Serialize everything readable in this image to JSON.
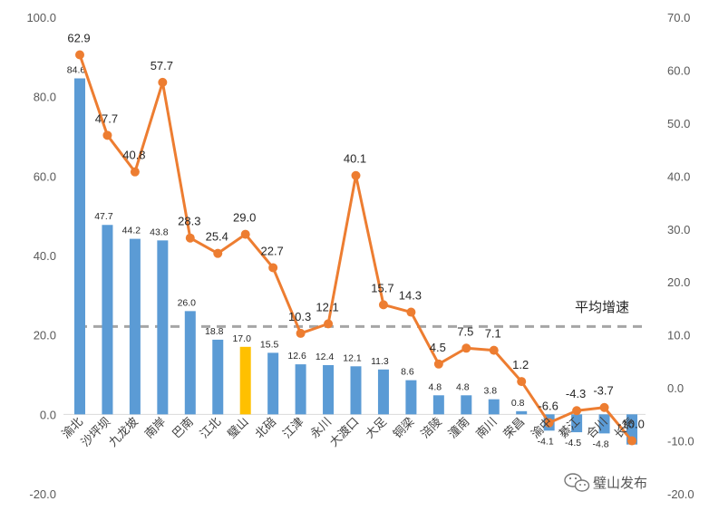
{
  "chart_data": {
    "type": "bar",
    "categories": [
      "渝北",
      "沙坪坝",
      "九龙坡",
      "南岸",
      "巴南",
      "江北",
      "璧山",
      "北碚",
      "江津",
      "永川",
      "大渡口",
      "大足",
      "铜梁",
      "涪陵",
      "潼南",
      "南川",
      "荣昌",
      "渝中",
      "綦江",
      "合川",
      "长寿"
    ],
    "bar_values": [
      84.6,
      47.7,
      44.2,
      43.8,
      26.0,
      18.8,
      17.0,
      15.5,
      12.6,
      12.4,
      12.1,
      11.3,
      8.6,
      4.8,
      4.8,
      3.8,
      0.8,
      -4.1,
      -4.5,
      -4.8,
      -7.6
    ],
    "bar_labels": [
      "84.6",
      "47.7",
      "44.2",
      "43.8",
      "26.0",
      "18.8",
      "17.0",
      "15.5",
      "12.6",
      "12.4",
      "12.1",
      "11.3",
      "8.6",
      "4.8",
      "4.8",
      "3.8",
      "0.8",
      "-4.1",
      "-4.5",
      "-4.8",
      ""
    ],
    "line_values": [
      62.9,
      47.7,
      40.8,
      57.7,
      28.3,
      25.4,
      29.0,
      22.7,
      10.3,
      12.1,
      40.1,
      15.7,
      14.3,
      4.5,
      7.5,
      7.1,
      1.2,
      -6.6,
      -4.3,
      -3.7,
      -10.0
    ],
    "line_labels": [
      "62.9",
      "47.7",
      "40.8",
      "57.7",
      "28.3",
      "25.4",
      "29.0",
      "22.7",
      "10.3",
      "12.1",
      "40.1",
      "15.7",
      "14.3",
      "4.5",
      "7.5",
      "7.1",
      "1.2",
      "-6.6",
      "-4.3",
      "-3.7",
      "-10.0"
    ],
    "highlight_index": 6,
    "average_label": "平均增速",
    "average_value": 11.6,
    "y_left": {
      "min": -20,
      "max": 100,
      "step": 20
    },
    "y_right": {
      "min": -20,
      "max": 70,
      "step": 10
    },
    "left_tick_labels": [
      "-20.0",
      "0.0",
      "20.0",
      "40.0",
      "60.0",
      "80.0",
      "100.0"
    ],
    "right_tick_labels": [
      "-20.0",
      "-10.0",
      "0.0",
      "10.0",
      "20.0",
      "30.0",
      "40.0",
      "50.0",
      "60.0",
      "70.0"
    ],
    "colors": {
      "bar": "#5b9bd5",
      "highlight_bar": "#ffc000",
      "line": "#ed7d31",
      "average": "#a6a6a6"
    },
    "grid": false
  },
  "watermark": {
    "text": "璧山发布",
    "icon": "wechat-icon"
  }
}
